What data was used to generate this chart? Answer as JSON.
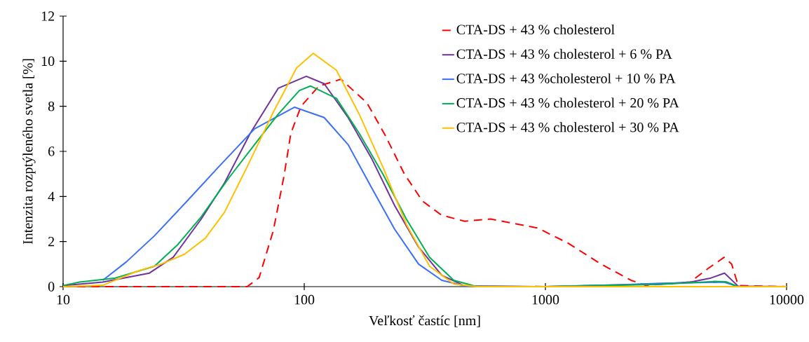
{
  "chart_data": {
    "type": "line",
    "xlabel": "Veľkosť častíc [nm]",
    "ylabel": "Intenzita rozptýleného svetla [%]",
    "log": "x",
    "xlim": [
      10,
      10000
    ],
    "xticks": [
      10,
      100,
      1000,
      10000
    ],
    "ylim": [
      0,
      12
    ],
    "yticks": [
      0,
      2,
      4,
      6,
      8,
      10,
      12
    ],
    "grid": false,
    "legend": "top right",
    "marker": "none",
    "series": [
      {
        "name": "CTA-DS + 43 % cholesterol",
        "color": "#ff0000",
        "line_style": "dashed",
        "x": [
          10,
          20,
          40,
          58,
          65,
          74.5,
          82.4,
          88,
          97,
          115,
          142,
          182,
          217,
          260,
          309,
          371,
          463,
          593,
          929,
          1240,
          1700,
          2265,
          2600,
          3980,
          4720,
          5510,
          5920,
          6300,
          10000
        ],
        "values": [
          0,
          0,
          0,
          0,
          0.4,
          2.5,
          4.9,
          6.8,
          8.0,
          8.9,
          9.2,
          8.15,
          6.7,
          5.0,
          3.8,
          3.17,
          2.9,
          3.0,
          2.6,
          1.93,
          1.0,
          0.28,
          0.06,
          0.2,
          0.8,
          1.3,
          1.0,
          0.05,
          0
        ]
      },
      {
        "name": "CTA-DS + 43 % cholesterol + 6 % PA",
        "color": "#7030a0",
        "line_style": "solid",
        "x": [
          10,
          14.6,
          22.8,
          28.6,
          37.4,
          46.7,
          59.7,
          78,
          102,
          121,
          152,
          190,
          237,
          298,
          372,
          464,
          1000,
          2000,
          3000,
          4000,
          4820,
          5530,
          6300,
          10000
        ],
        "values": [
          0.05,
          0.2,
          0.6,
          1.3,
          3.0,
          4.6,
          6.8,
          8.8,
          9.33,
          9.0,
          7.5,
          5.7,
          3.6,
          1.75,
          0.5,
          0.03,
          0,
          0.08,
          0.12,
          0.2,
          0.37,
          0.6,
          0.02,
          0
        ]
      },
      {
        "name": "CTA-DS + 43 %cholesterol + 10 % PA",
        "color": "#3a6ff7",
        "line_style": "solid",
        "x": [
          14.6,
          18.3,
          23.9,
          32.7,
          44.5,
          62.2,
          91.2,
          121,
          152,
          190,
          237,
          298,
          372,
          464,
          1000,
          2000,
          3000,
          4000,
          5500,
          6300,
          10000
        ],
        "values": [
          0.28,
          1.1,
          2.25,
          3.8,
          5.35,
          7.0,
          7.96,
          7.5,
          6.3,
          4.4,
          2.55,
          1.0,
          0.28,
          0.03,
          0,
          0.08,
          0.15,
          0.17,
          0.2,
          0,
          0
        ]
      },
      {
        "name": "CTA-DS + 43 % cholesterol + 20 % PA",
        "color": "#00b050",
        "line_style": "solid",
        "x": [
          10,
          11.7,
          16.3,
          23.9,
          29.8,
          37.4,
          48.9,
          62.2,
          78,
          95.5,
          106,
          136,
          169,
          213,
          265,
          331,
          417,
          520,
          1000,
          3000,
          5000,
          5600,
          6300,
          10000
        ],
        "values": [
          0.05,
          0.2,
          0.37,
          0.9,
          1.85,
          3.1,
          4.85,
          6.3,
          7.65,
          8.7,
          8.9,
          8.35,
          6.8,
          4.95,
          3.0,
          1.3,
          0.28,
          0,
          0,
          0.1,
          0.23,
          0.22,
          0,
          0
        ]
      },
      {
        "name": "CTA-DS + 43 % cholesterol + 30 % PA",
        "color": "#ffc000",
        "line_style": "solid",
        "x": [
          10,
          14.6,
          20.5,
          25.5,
          31.8,
          38.9,
          46.7,
          58.2,
          74.5,
          92.9,
          109,
          136,
          169,
          213,
          265,
          331,
          417,
          520,
          10000
        ],
        "values": [
          0,
          0.06,
          0.7,
          1.0,
          1.43,
          2.15,
          3.3,
          5.35,
          7.75,
          9.7,
          10.35,
          9.6,
          7.65,
          5.25,
          2.77,
          0.9,
          0.12,
          0,
          0
        ]
      }
    ]
  }
}
